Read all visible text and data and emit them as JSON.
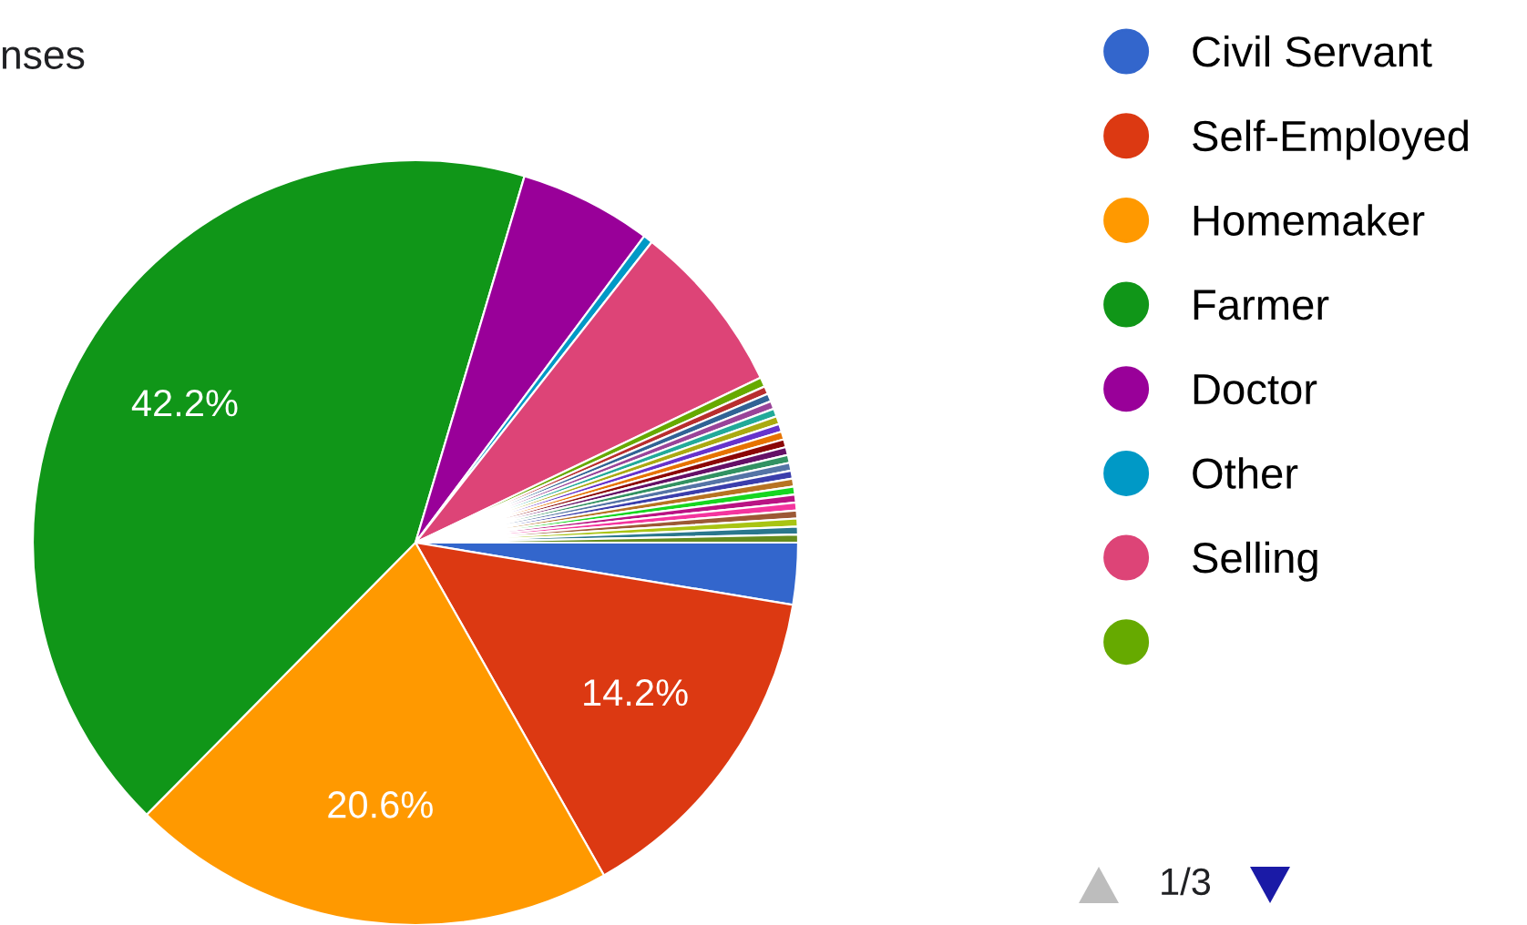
{
  "chart_data": {
    "type": "pie",
    "title": "nses",
    "categories": [
      "Civil Servant",
      "Self-Employed",
      "Homemaker",
      "Farmer",
      "Doctor",
      "Other",
      "Selling",
      null,
      null,
      null,
      null,
      null,
      null,
      null,
      null,
      null,
      null,
      null,
      null,
      null,
      null,
      null,
      null,
      null,
      null,
      null,
      null,
      null
    ],
    "values": [
      2.6,
      14.2,
      20.6,
      42.2,
      5.6,
      0.4,
      7.3,
      0.4,
      0.335,
      0.335,
      0.335,
      0.335,
      0.335,
      0.335,
      0.335,
      0.335,
      0.335,
      0.335,
      0.335,
      0.335,
      0.335,
      0.335,
      0.335,
      0.335,
      0.335,
      0.335,
      0.335,
      0.335
    ],
    "colors": [
      "#3366cc",
      "#dc3912",
      "#ff9900",
      "#109618",
      "#990099",
      "#0099c6",
      "#dd4477",
      "#66aa00",
      "#b82e2e",
      "#316395",
      "#994499",
      "#22aa99",
      "#aaaa11",
      "#6633cc",
      "#e67300",
      "#8b0707",
      "#651067",
      "#329262",
      "#5574a6",
      "#3b3eac",
      "#b77322",
      "#16d620",
      "#b91383",
      "#f4359e",
      "#9c5935",
      "#a9c413",
      "#2a778d",
      "#668d1c"
    ],
    "value_labels": [
      null,
      "14.2%",
      "20.6%",
      "42.2%",
      null,
      null,
      null,
      null,
      null,
      null,
      null,
      null,
      null,
      null,
      null,
      null,
      null,
      null,
      null,
      null,
      null,
      null,
      null,
      null,
      null,
      null,
      null,
      null
    ],
    "legend": "right",
    "annotations": [
      "1/3"
    ]
  }
}
